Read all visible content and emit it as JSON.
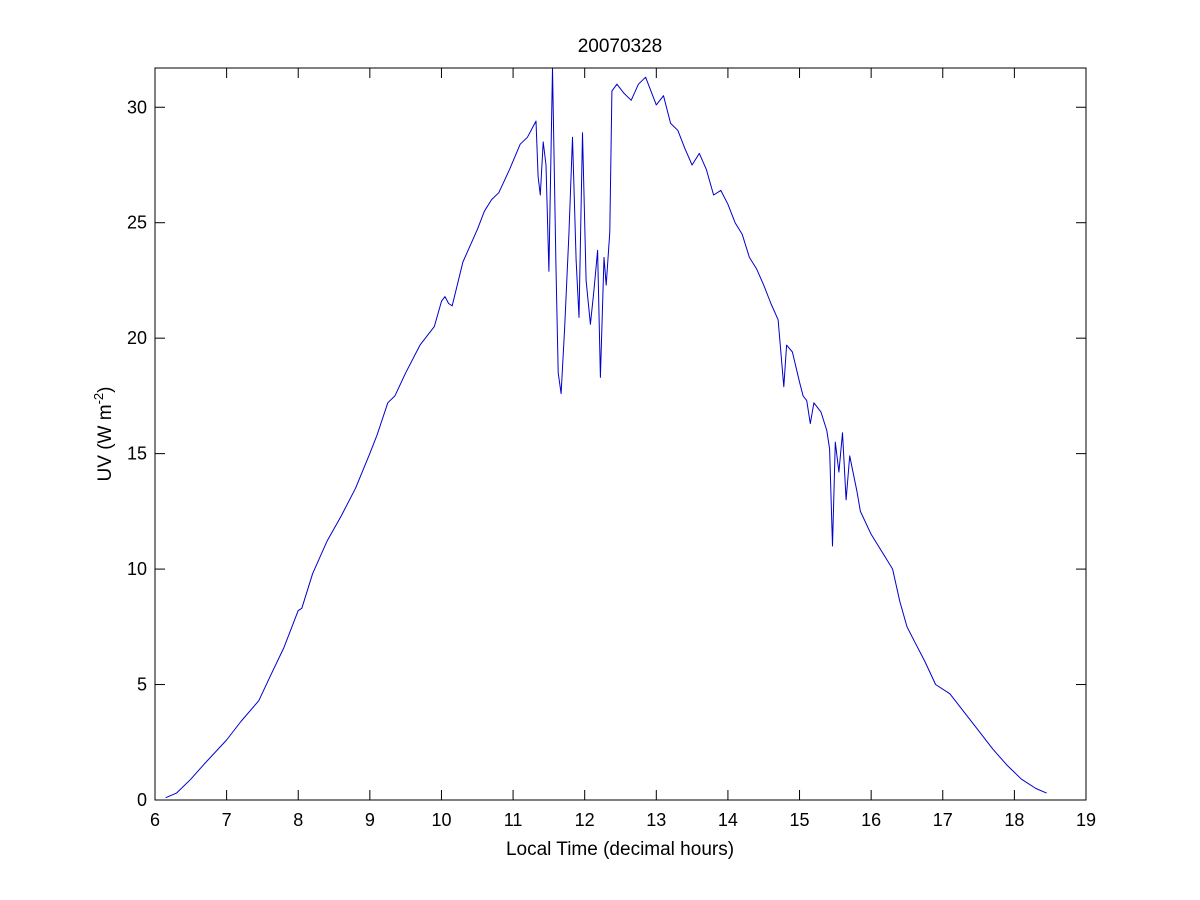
{
  "chart_data": {
    "type": "line",
    "title": "20070328",
    "xlabel": "Local Time (decimal hours)",
    "ylabel": {
      "text": "UV (W m",
      "superscript": "-2",
      "close": ")"
    },
    "xlim": [
      6,
      19
    ],
    "ylim": [
      0,
      31.7
    ],
    "xticks": [
      "6",
      "7",
      "8",
      "9",
      "10",
      "11",
      "12",
      "13",
      "14",
      "15",
      "16",
      "17",
      "18",
      "19"
    ],
    "yticks": [
      "0",
      "5",
      "10",
      "15",
      "20",
      "25",
      "30"
    ],
    "grid": false,
    "legend": "none",
    "series": [
      {
        "color": "#0000cc",
        "points": [
          [
            6.15,
            0.1
          ],
          [
            6.3,
            0.3
          ],
          [
            6.5,
            0.9
          ],
          [
            6.7,
            1.6
          ],
          [
            7.0,
            2.6
          ],
          [
            7.2,
            3.4
          ],
          [
            7.45,
            4.3
          ],
          [
            7.6,
            5.3
          ],
          [
            7.8,
            6.6
          ],
          [
            8.0,
            8.2
          ],
          [
            8.05,
            8.3
          ],
          [
            8.2,
            9.8
          ],
          [
            8.4,
            11.2
          ],
          [
            8.6,
            12.3
          ],
          [
            8.8,
            13.5
          ],
          [
            9.0,
            15.0
          ],
          [
            9.1,
            15.8
          ],
          [
            9.25,
            17.2
          ],
          [
            9.35,
            17.5
          ],
          [
            9.5,
            18.5
          ],
          [
            9.7,
            19.7
          ],
          [
            9.9,
            20.5
          ],
          [
            10.0,
            21.6
          ],
          [
            10.05,
            21.8
          ],
          [
            10.1,
            21.5
          ],
          [
            10.15,
            21.4
          ],
          [
            10.3,
            23.3
          ],
          [
            10.4,
            24.0
          ],
          [
            10.5,
            24.7
          ],
          [
            10.6,
            25.5
          ],
          [
            10.7,
            26.0
          ],
          [
            10.8,
            26.3
          ],
          [
            10.95,
            27.3
          ],
          [
            11.1,
            28.4
          ],
          [
            11.2,
            28.7
          ],
          [
            11.32,
            29.4
          ],
          [
            11.35,
            27.0
          ],
          [
            11.38,
            26.2
          ],
          [
            11.42,
            28.5
          ],
          [
            11.46,
            27.5
          ],
          [
            11.5,
            22.9
          ],
          [
            11.55,
            31.7
          ],
          [
            11.6,
            23.0
          ],
          [
            11.63,
            18.5
          ],
          [
            11.67,
            17.6
          ],
          [
            11.72,
            20.4
          ],
          [
            11.78,
            24.5
          ],
          [
            11.83,
            28.7
          ],
          [
            11.88,
            23.4
          ],
          [
            11.92,
            20.9
          ],
          [
            11.97,
            28.9
          ],
          [
            12.02,
            22.5
          ],
          [
            12.08,
            20.6
          ],
          [
            12.13,
            22.1
          ],
          [
            12.18,
            23.8
          ],
          [
            12.22,
            18.3
          ],
          [
            12.27,
            23.5
          ],
          [
            12.3,
            22.3
          ],
          [
            12.35,
            24.6
          ],
          [
            12.38,
            30.7
          ],
          [
            12.45,
            31.0
          ],
          [
            12.55,
            30.6
          ],
          [
            12.65,
            30.3
          ],
          [
            12.75,
            31.0
          ],
          [
            12.85,
            31.3
          ],
          [
            13.0,
            30.1
          ],
          [
            13.1,
            30.5
          ],
          [
            13.2,
            29.3
          ],
          [
            13.3,
            29.0
          ],
          [
            13.4,
            28.2
          ],
          [
            13.5,
            27.5
          ],
          [
            13.6,
            28.0
          ],
          [
            13.7,
            27.3
          ],
          [
            13.8,
            26.2
          ],
          [
            13.9,
            26.4
          ],
          [
            14.0,
            25.8
          ],
          [
            14.1,
            25.0
          ],
          [
            14.2,
            24.5
          ],
          [
            14.3,
            23.5
          ],
          [
            14.4,
            23.0
          ],
          [
            14.5,
            22.3
          ],
          [
            14.6,
            21.5
          ],
          [
            14.7,
            20.8
          ],
          [
            14.78,
            17.9
          ],
          [
            14.82,
            19.7
          ],
          [
            14.9,
            19.4
          ],
          [
            15.0,
            18.1
          ],
          [
            15.05,
            17.5
          ],
          [
            15.1,
            17.3
          ],
          [
            15.15,
            16.3
          ],
          [
            15.2,
            17.2
          ],
          [
            15.3,
            16.8
          ],
          [
            15.38,
            16.0
          ],
          [
            15.42,
            15.2
          ],
          [
            15.46,
            11.0
          ],
          [
            15.5,
            15.5
          ],
          [
            15.55,
            14.2
          ],
          [
            15.6,
            15.9
          ],
          [
            15.65,
            13.0
          ],
          [
            15.7,
            14.9
          ],
          [
            15.8,
            13.4
          ],
          [
            15.85,
            12.5
          ],
          [
            16.0,
            11.5
          ],
          [
            16.2,
            10.5
          ],
          [
            16.3,
            10.0
          ],
          [
            16.4,
            8.6
          ],
          [
            16.5,
            7.5
          ],
          [
            16.6,
            6.9
          ],
          [
            16.75,
            6.0
          ],
          [
            16.9,
            5.0
          ],
          [
            17.1,
            4.6
          ],
          [
            17.3,
            3.8
          ],
          [
            17.5,
            3.0
          ],
          [
            17.7,
            2.2
          ],
          [
            17.9,
            1.5
          ],
          [
            18.1,
            0.9
          ],
          [
            18.3,
            0.5
          ],
          [
            18.45,
            0.3
          ]
        ]
      }
    ]
  }
}
